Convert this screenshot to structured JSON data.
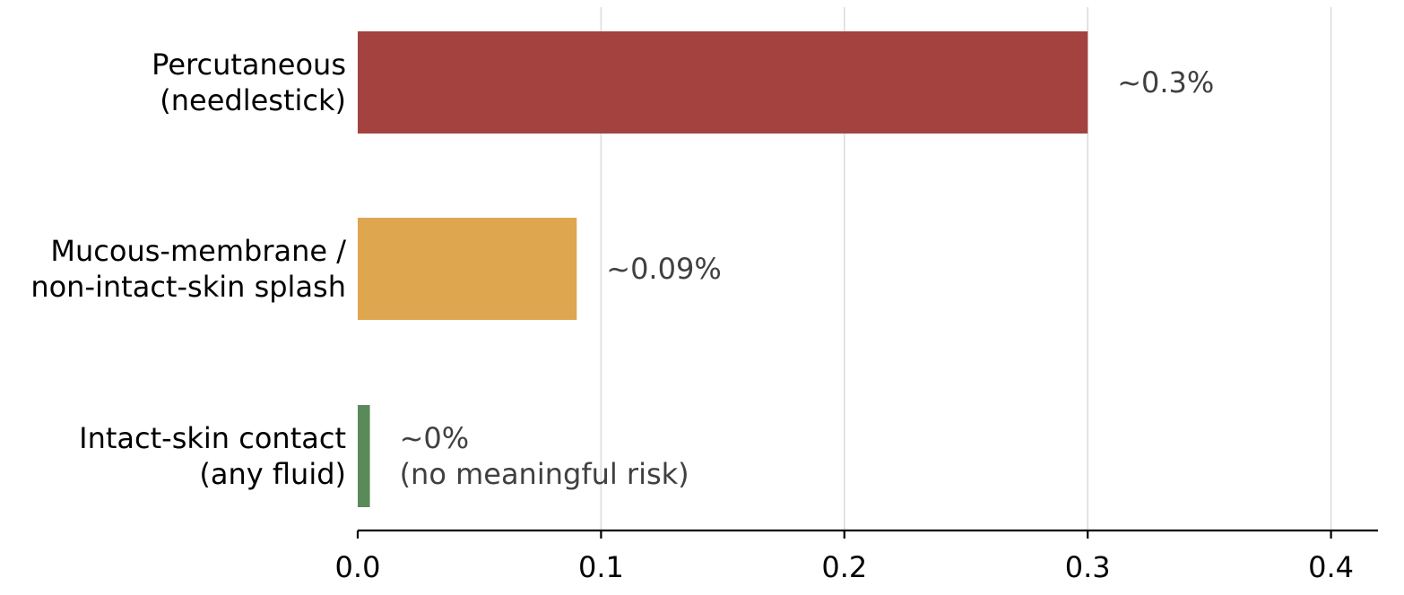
{
  "chart_data": {
    "type": "bar",
    "orientation": "horizontal",
    "categories": [
      [
        "Percutaneous",
        "(needlestick)"
      ],
      [
        "Mucous-membrane /",
        "non-intact-skin splash"
      ],
      [
        "Intact-skin contact",
        "(any fluid)"
      ]
    ],
    "values": [
      0.3,
      0.09,
      0.005
    ],
    "colors": [
      "#a3423e",
      "#dfa650",
      "#5b8a5a"
    ],
    "data_labels": [
      [
        "~0.3%"
      ],
      [
        "~0.09%"
      ],
      [
        "~0%",
        "(no meaningful risk)"
      ]
    ],
    "xticks": [
      "0.0",
      "0.1",
      "0.2",
      "0.3",
      "0.4"
    ],
    "xtick_values": [
      0,
      0.1,
      0.2,
      0.3,
      0.4
    ],
    "xlim": [
      0,
      0.42
    ],
    "title": "",
    "xlabel": "",
    "ylabel": "",
    "grid": "vertical",
    "legend": "none"
  }
}
